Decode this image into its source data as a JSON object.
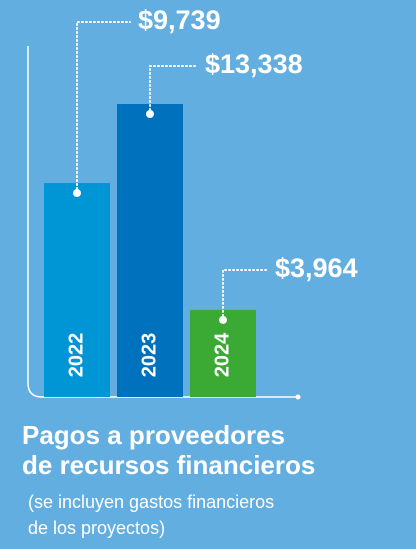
{
  "chart_data": {
    "type": "bar",
    "title": [
      "Pagos a proveedores",
      "de recursos financieros"
    ],
    "subtitle": [
      "(se incluyen gastos financieros",
      "de los proyectos)"
    ],
    "categories": [
      "2022",
      "2023",
      "2024"
    ],
    "values": [
      9739,
      13338,
      3964
    ],
    "value_labels": [
      "$9,739",
      "$13,338",
      "$3,964"
    ],
    "colors": [
      "#0096d6",
      "#0071bc",
      "#3aaa35"
    ]
  }
}
